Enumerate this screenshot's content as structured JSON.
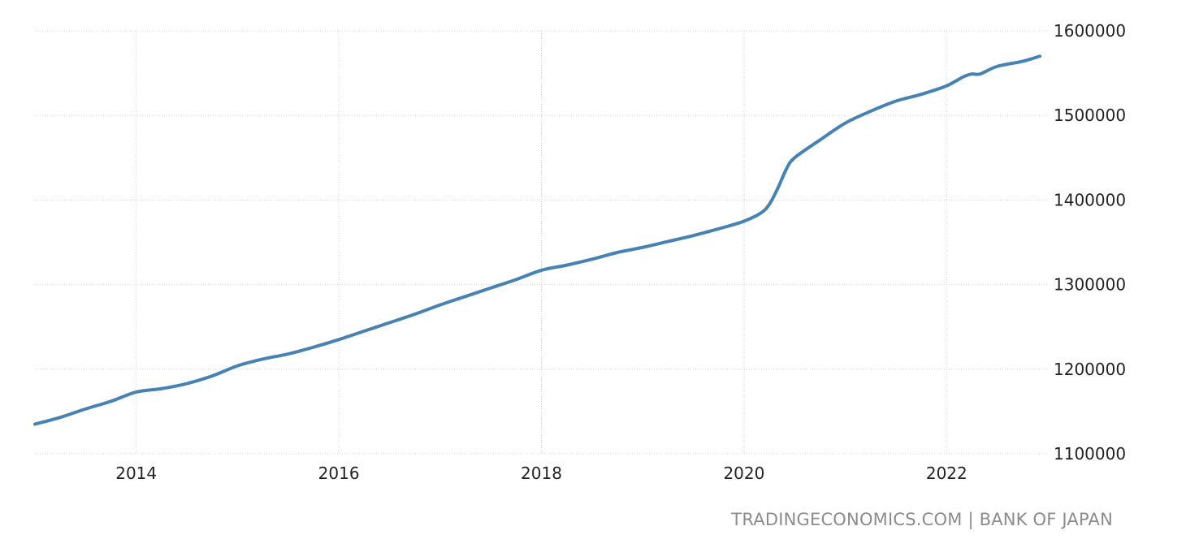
{
  "source_label": "TRADINGECONOMICS.COM | BANK OF JAPAN",
  "colors": {
    "series": "#4682b4",
    "grid": "#d2d2d2",
    "tick_text": "#222222",
    "source_text": "#8c8c8c"
  },
  "chart_data": {
    "type": "line",
    "title": "",
    "xlabel": "",
    "ylabel": "",
    "xlim": [
      2013.0,
      2023.0
    ],
    "ylim": [
      1100000,
      1600000
    ],
    "x_ticks": [
      2014,
      2016,
      2018,
      2020,
      2022
    ],
    "x_tick_labels": [
      "2014",
      "2016",
      "2018",
      "2020",
      "2022"
    ],
    "y_ticks": [
      1100000,
      1200000,
      1300000,
      1400000,
      1500000,
      1600000
    ],
    "y_tick_labels": [
      "1100000",
      "1200000",
      "1300000",
      "1400000",
      "1500000",
      "1600000"
    ],
    "grid": true,
    "y_axis_position": "right",
    "legend": "none",
    "series": [
      {
        "color": "#4682b4",
        "x": [
          2013.0,
          2013.25,
          2013.5,
          2013.75,
          2014.0,
          2014.25,
          2014.5,
          2014.75,
          2015.0,
          2015.25,
          2015.5,
          2015.75,
          2016.0,
          2016.25,
          2016.5,
          2016.75,
          2017.0,
          2017.25,
          2017.5,
          2017.75,
          2018.0,
          2018.25,
          2018.5,
          2018.75,
          2019.0,
          2019.25,
          2019.5,
          2019.75,
          2020.0,
          2020.17,
          2020.25,
          2020.33,
          2020.42,
          2020.5,
          2020.75,
          2021.0,
          2021.25,
          2021.5,
          2021.75,
          2022.0,
          2022.17,
          2022.25,
          2022.33,
          2022.5,
          2022.75,
          2022.92
        ],
        "values": [
          1135000,
          1143000,
          1153000,
          1162000,
          1173000,
          1177000,
          1183000,
          1192000,
          1204000,
          1212000,
          1218000,
          1226000,
          1235000,
          1245000,
          1255000,
          1265000,
          1276000,
          1286000,
          1296000,
          1306000,
          1317000,
          1323000,
          1330000,
          1338000,
          1344000,
          1351000,
          1358000,
          1366000,
          1375000,
          1385000,
          1395000,
          1413000,
          1437000,
          1450000,
          1471000,
          1491000,
          1505000,
          1517000,
          1525000,
          1535000,
          1546000,
          1549000,
          1549000,
          1558000,
          1564000,
          1570000
        ]
      }
    ]
  }
}
